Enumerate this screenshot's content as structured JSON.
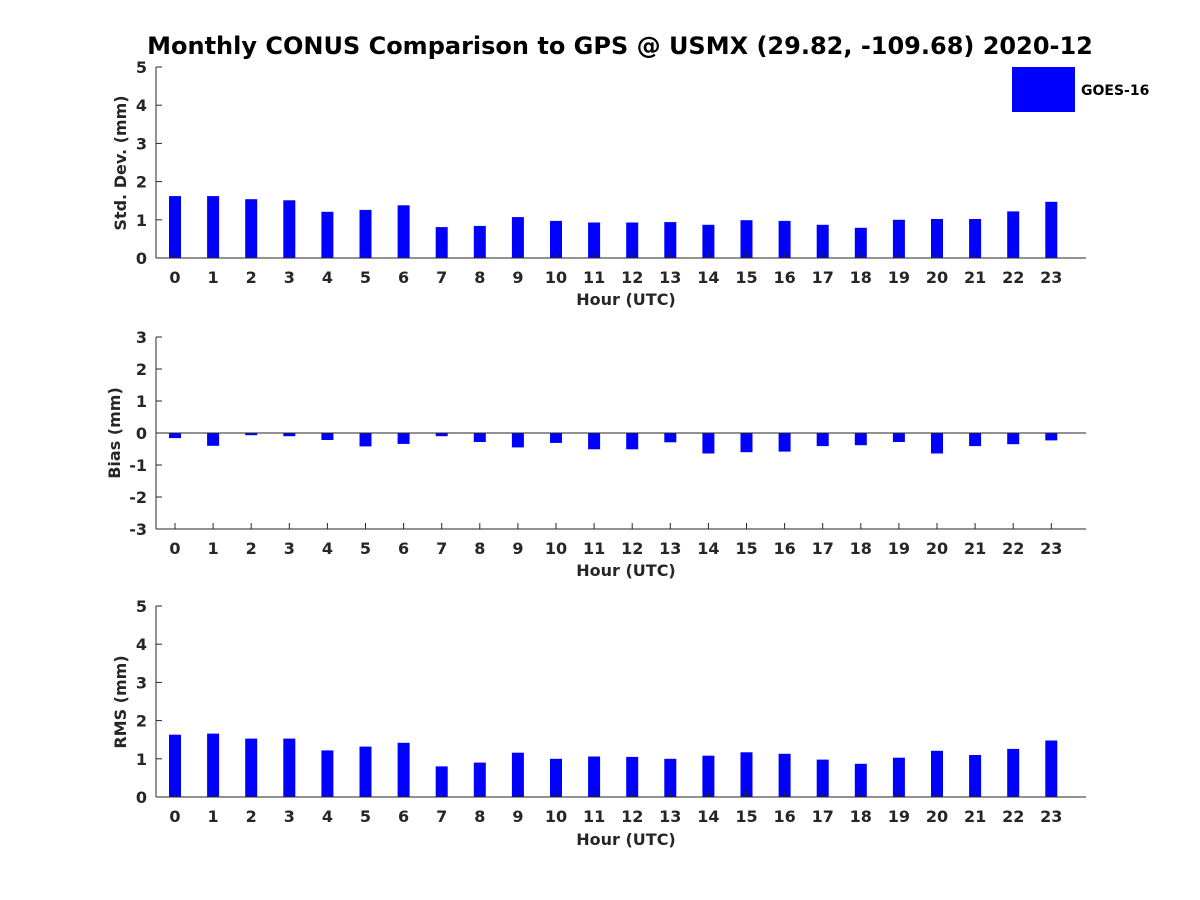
{
  "figure_title": "Monthly CONUS Comparison to GPS @ USMX (29.82, -109.68) 2020-12",
  "bar_color": "#0000ff",
  "chart_data": [
    {
      "type": "bar",
      "title": "",
      "xlabel": "Hour (UTC)",
      "ylabel": "Std. Dev. (mm)",
      "ylim": [
        0,
        5
      ],
      "yticks": [
        0,
        1,
        2,
        3,
        4,
        5
      ],
      "categories": [
        "0",
        "1",
        "2",
        "3",
        "4",
        "5",
        "6",
        "7",
        "8",
        "9",
        "10",
        "11",
        "12",
        "13",
        "14",
        "15",
        "16",
        "17",
        "18",
        "19",
        "20",
        "21",
        "22",
        "23"
      ],
      "series": [
        {
          "name": "GOES-16",
          "color": "#0000ff",
          "values": [
            1.62,
            1.62,
            1.54,
            1.51,
            1.21,
            1.26,
            1.38,
            0.81,
            0.84,
            1.07,
            0.97,
            0.93,
            0.93,
            0.94,
            0.87,
            0.99,
            0.97,
            0.87,
            0.79,
            1.0,
            1.02,
            1.02,
            1.22,
            1.47
          ]
        }
      ],
      "legend": {
        "entries": [
          "GOES-16"
        ],
        "placement": "top-right"
      }
    },
    {
      "type": "bar",
      "title": "",
      "xlabel": "Hour (UTC)",
      "ylabel": "Bias (mm)",
      "ylim": [
        -3,
        3
      ],
      "yticks": [
        -3,
        -2,
        -1,
        0,
        1,
        2,
        3
      ],
      "zero_line": true,
      "categories": [
        "0",
        "1",
        "2",
        "3",
        "4",
        "5",
        "6",
        "7",
        "8",
        "9",
        "10",
        "11",
        "12",
        "13",
        "14",
        "15",
        "16",
        "17",
        "18",
        "19",
        "20",
        "21",
        "22",
        "23"
      ],
      "series": [
        {
          "name": "GOES-16",
          "color": "#0000ff",
          "values": [
            -0.16,
            -0.4,
            -0.07,
            -0.1,
            -0.22,
            -0.42,
            -0.34,
            -0.1,
            -0.28,
            -0.45,
            -0.31,
            -0.51,
            -0.51,
            -0.29,
            -0.64,
            -0.6,
            -0.58,
            -0.41,
            -0.38,
            -0.28,
            -0.64,
            -0.41,
            -0.35,
            -0.23
          ]
        }
      ]
    },
    {
      "type": "bar",
      "title": "",
      "xlabel": "Hour (UTC)",
      "ylabel": "RMS (mm)",
      "ylim": [
        0,
        5
      ],
      "yticks": [
        0,
        1,
        2,
        3,
        4,
        5
      ],
      "categories": [
        "0",
        "1",
        "2",
        "3",
        "4",
        "5",
        "6",
        "7",
        "8",
        "9",
        "10",
        "11",
        "12",
        "13",
        "14",
        "15",
        "16",
        "17",
        "18",
        "19",
        "20",
        "21",
        "22",
        "23"
      ],
      "series": [
        {
          "name": "GOES-16",
          "color": "#0000ff",
          "values": [
            1.63,
            1.66,
            1.53,
            1.53,
            1.22,
            1.32,
            1.42,
            0.8,
            0.9,
            1.16,
            1.0,
            1.06,
            1.05,
            1.0,
            1.08,
            1.17,
            1.13,
            0.98,
            0.87,
            1.03,
            1.21,
            1.1,
            1.26,
            1.48
          ]
        }
      ]
    }
  ]
}
